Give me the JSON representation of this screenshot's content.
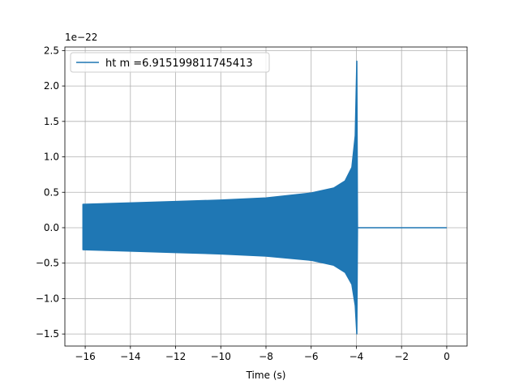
{
  "chart_data": {
    "type": "line",
    "title": "",
    "xlabel": "Time (s)",
    "ylabel": "",
    "y_offset_text": "1e−22",
    "xlim": [
      -16.9,
      0.9
    ],
    "ylim": [
      -1.67,
      2.55
    ],
    "x_ticks": [
      -16,
      -14,
      -12,
      -10,
      -8,
      -6,
      -4,
      -2,
      0
    ],
    "x_tick_labels": [
      "−16",
      "−14",
      "−12",
      "−10",
      "−8",
      "−6",
      "−4",
      "−2",
      "0"
    ],
    "y_ticks": [
      -1.5,
      -1.0,
      -0.5,
      0.0,
      0.5,
      1.0,
      1.5,
      2.0,
      2.5
    ],
    "y_tick_labels": [
      "−1.5",
      "−1.0",
      "−0.5",
      "0.0",
      "0.5",
      "1.0",
      "1.5",
      "2.0",
      "2.5"
    ],
    "grid": true,
    "legend_position": "upper-left",
    "series": [
      {
        "name": "ht m =6.915199811745413",
        "color": "#1f77b4",
        "x_start": -16.1,
        "merger_time": -3.95,
        "x_end": 0.0,
        "envelope_upper": [
          [
            -16.1,
            0.33
          ],
          [
            -14.0,
            0.35
          ],
          [
            -12.0,
            0.37
          ],
          [
            -10.0,
            0.39
          ],
          [
            -8.0,
            0.42
          ],
          [
            -6.0,
            0.49
          ],
          [
            -5.0,
            0.56
          ],
          [
            -4.5,
            0.66
          ],
          [
            -4.2,
            0.85
          ],
          [
            -4.05,
            1.3
          ],
          [
            -3.98,
            2.35
          ],
          [
            -3.95,
            0.0
          ]
        ],
        "envelope_lower": [
          [
            -16.1,
            -0.31
          ],
          [
            -14.0,
            -0.33
          ],
          [
            -12.0,
            -0.35
          ],
          [
            -10.0,
            -0.37
          ],
          [
            -8.0,
            -0.4
          ],
          [
            -6.0,
            -0.46
          ],
          [
            -5.0,
            -0.53
          ],
          [
            -4.5,
            -0.63
          ],
          [
            -4.2,
            -0.8
          ],
          [
            -4.05,
            -1.1
          ],
          [
            -3.98,
            -1.5
          ],
          [
            -3.95,
            0.0
          ]
        ],
        "post_merger_value": 0.0
      }
    ]
  }
}
